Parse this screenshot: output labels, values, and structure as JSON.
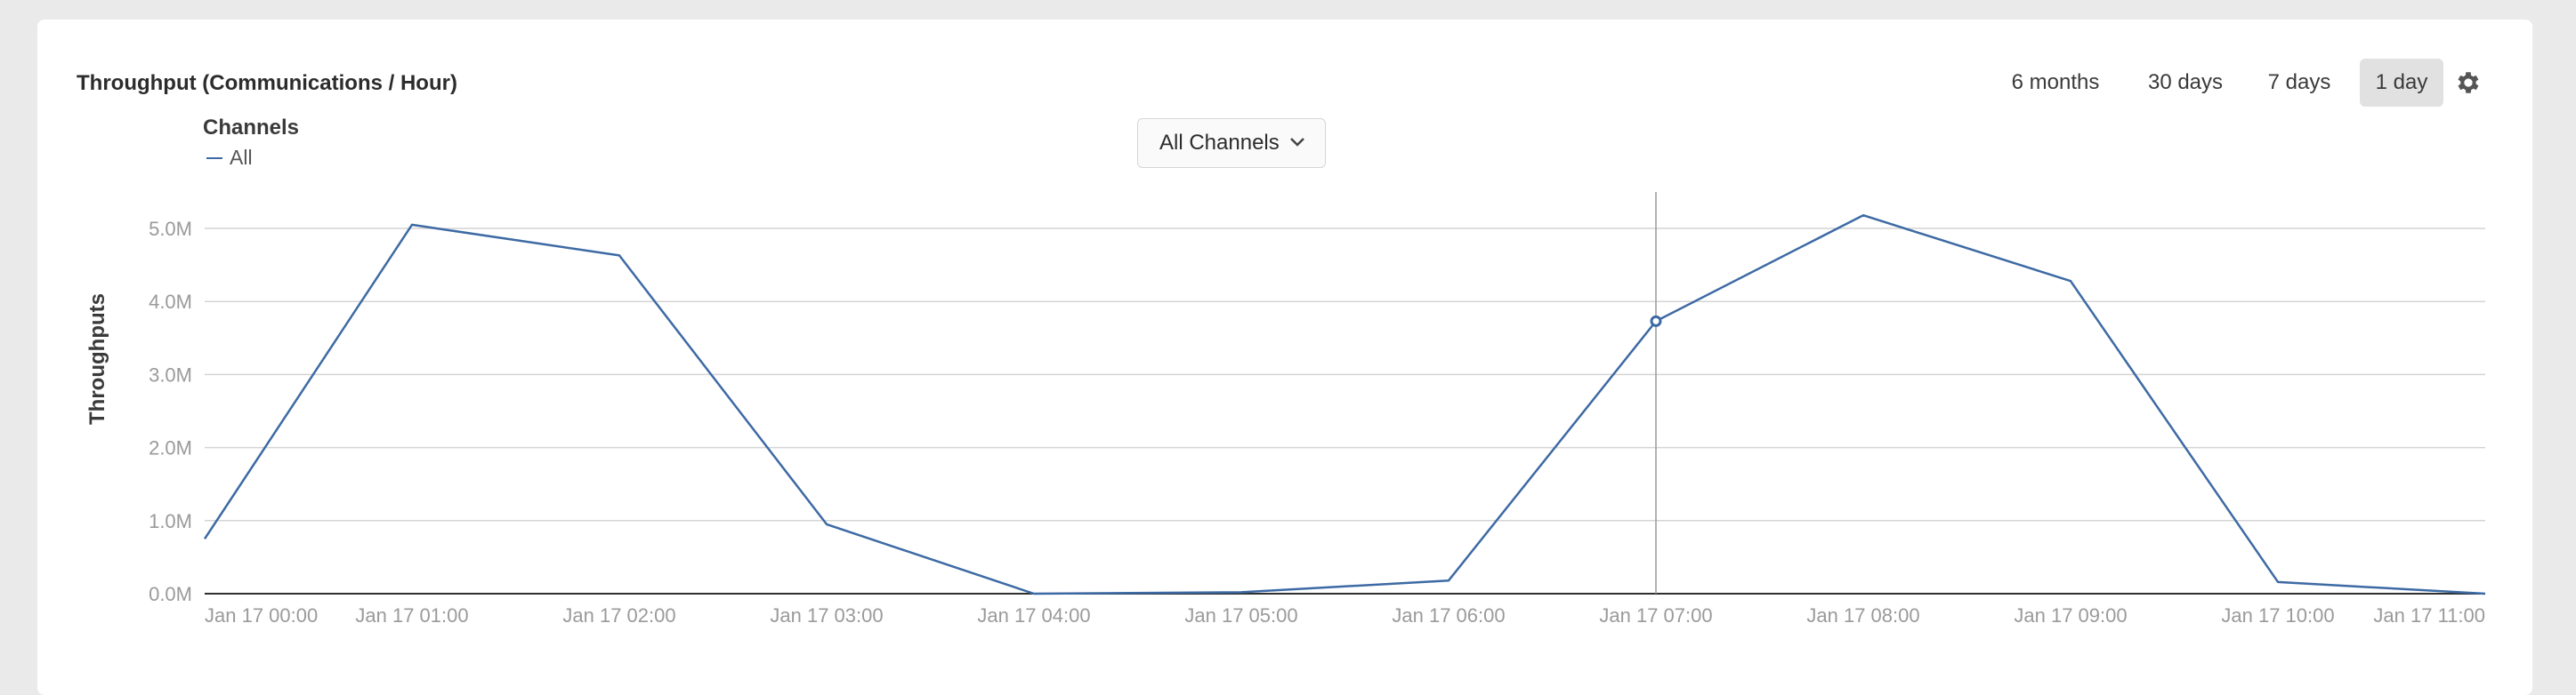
{
  "header": {
    "title": "Throughput (Communications / Hour)"
  },
  "time_ranges": [
    {
      "label": "6 months",
      "active": false
    },
    {
      "label": "30 days",
      "active": false
    },
    {
      "label": "7 days",
      "active": false
    },
    {
      "label": "1 day",
      "active": true
    }
  ],
  "settings_icon": "gear-icon",
  "legend": {
    "title": "Channels",
    "items": [
      {
        "label": "All",
        "color": "#3d6aa4"
      }
    ]
  },
  "channel_picker": {
    "value": "All Channels",
    "icon": "chevron-down-icon"
  },
  "chart_data": {
    "type": "line",
    "ylabel": "Throughputs",
    "xlabel": "",
    "x": [
      "Jan 17 00:00",
      "Jan 17 01:00",
      "Jan 17 02:00",
      "Jan 17 03:00",
      "Jan 17 04:00",
      "Jan 17 05:00",
      "Jan 17 06:00",
      "Jan 17 07:00",
      "Jan 17 08:00",
      "Jan 17 09:00",
      "Jan 17 10:00",
      "Jan 17 11:00"
    ],
    "yticks": [
      "0.0M",
      "1.0M",
      "2.0M",
      "3.0M",
      "4.0M",
      "5.0M"
    ],
    "ylim": [
      0,
      5000000
    ],
    "grid": true,
    "series": [
      {
        "name": "All",
        "color": "#3d6aa4",
        "values": [
          750000,
          5050000,
          4630000,
          950000,
          0,
          20000,
          180000,
          3730000,
          5180000,
          4280000,
          160000,
          0
        ]
      }
    ],
    "hover": {
      "x": "Jan 17 07:00"
    }
  }
}
